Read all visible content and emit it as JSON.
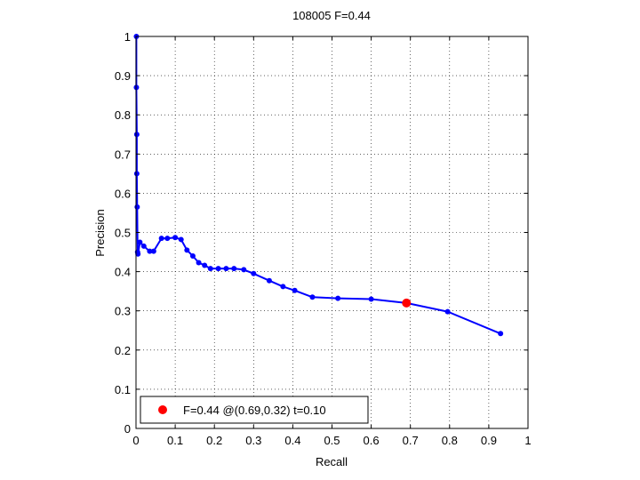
{
  "chart_data": {
    "type": "line",
    "title": "108005 F=0.44",
    "xlabel": "Recall",
    "ylabel": "Precision",
    "xlim": [
      0,
      1
    ],
    "ylim": [
      0,
      1
    ],
    "xticks": [
      "0",
      "0.1",
      "0.2",
      "0.3",
      "0.4",
      "0.5",
      "0.6",
      "0.7",
      "0.8",
      "0.9",
      "1"
    ],
    "yticks": [
      "0",
      "0.1",
      "0.2",
      "0.3",
      "0.4",
      "0.5",
      "0.6",
      "0.7",
      "0.8",
      "0.9",
      "1"
    ],
    "grid": true,
    "legend_position": "bottom-left",
    "legend_label": "F=0.44 @(0.69,0.32) t=0.10",
    "colors": {
      "curve": "#0000ff",
      "connector": "#000000",
      "best_point": "#ff0000"
    },
    "series": [
      {
        "x": [
          0.001,
          0.001,
          0.002,
          0.002,
          0.003,
          0.004,
          0.005,
          0.01,
          0.02,
          0.035,
          0.045,
          0.065,
          0.08,
          0.1,
          0.115,
          0.13,
          0.145,
          0.16,
          0.175,
          0.19,
          0.21,
          0.23,
          0.25,
          0.275,
          0.3,
          0.34,
          0.375,
          0.405,
          0.45,
          0.515,
          0.6,
          0.69,
          0.795,
          0.93
        ],
        "y": [
          1.0,
          0.87,
          0.75,
          0.65,
          0.565,
          0.45,
          0.445,
          0.475,
          0.465,
          0.452,
          0.452,
          0.485,
          0.485,
          0.487,
          0.482,
          0.455,
          0.44,
          0.423,
          0.416,
          0.408,
          0.408,
          0.408,
          0.408,
          0.405,
          0.395,
          0.377,
          0.362,
          0.352,
          0.335,
          0.332,
          0.33,
          0.32,
          0.298,
          0.242
        ]
      }
    ],
    "best_point": {
      "recall": 0.69,
      "precision": 0.32
    }
  }
}
